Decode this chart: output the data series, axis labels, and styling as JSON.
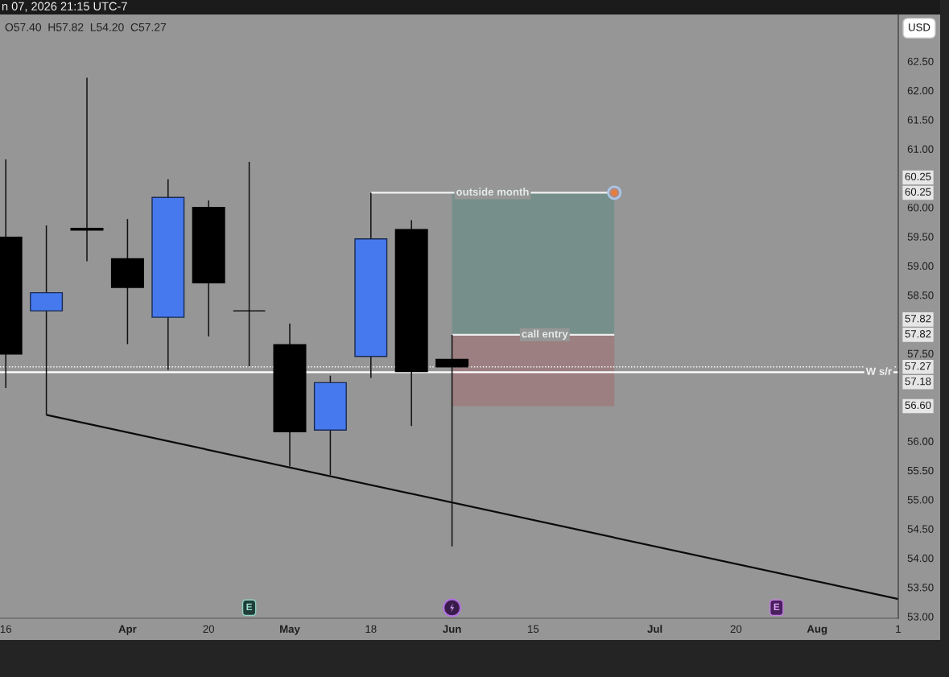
{
  "chart_data": {
    "type": "candlestick",
    "title": "n 07, 2026 21:15 UTC-7",
    "subtitle": "O57.40  H57.82  L54.20  C57.27",
    "ylabel": "USD",
    "xlim": [
      "2026-03-15",
      "2026-08-17"
    ],
    "ylim": [
      52.97,
      63.3
    ],
    "xticks": [
      {
        "value": "2026-03-16",
        "label": "16"
      },
      {
        "value": "2026-04-06",
        "label": "Apr"
      },
      {
        "value": "2026-04-20",
        "label": "20"
      },
      {
        "value": "2026-05-04",
        "label": "May"
      },
      {
        "value": "2026-05-18",
        "label": "18"
      },
      {
        "value": "2026-06-01",
        "label": "Jun"
      },
      {
        "value": "2026-06-15",
        "label": "15"
      },
      {
        "value": "2026-07-06",
        "label": "Jul"
      },
      {
        "value": "2026-07-20",
        "label": "20"
      },
      {
        "value": "2026-08-03",
        "label": "Aug"
      },
      {
        "value": "2026-08-17",
        "label": "1"
      }
    ],
    "yticks": [
      {
        "value": 53,
        "label": "53.00"
      },
      {
        "value": 53.5,
        "label": "53.50"
      },
      {
        "value": 54,
        "label": "54.00"
      },
      {
        "value": 54.5,
        "label": "54.50"
      },
      {
        "value": 55,
        "label": "55.00"
      },
      {
        "value": 55.5,
        "label": "55.50"
      },
      {
        "value": 56,
        "label": "56.00"
      },
      {
        "value": 57.5,
        "label": "57.50"
      },
      {
        "value": 58.5,
        "label": "58.50"
      },
      {
        "value": 59,
        "label": "59.00"
      },
      {
        "value": 59.5,
        "label": "59.50"
      },
      {
        "value": 60,
        "label": "60.00"
      },
      {
        "value": 61,
        "label": "61.00"
      },
      {
        "value": 61.5,
        "label": "61.50"
      },
      {
        "value": 62,
        "label": "62.00"
      },
      {
        "value": 62.5,
        "label": "62.50"
      }
    ],
    "series": [
      {
        "type": "line",
        "x": [
          "2026-06-01",
          "2026-06-29"
        ],
        "values": [
          57.82,
          57.82
        ],
        "lower": [
          57.82,
          57.82
        ],
        "upper": [
          60.25,
          60.25
        ],
        "color": "#eeeeee"
      },
      {
        "type": "line",
        "x": [
          "2026-03-23",
          "2026-08-17"
        ],
        "values": [
          56.45,
          53.3
        ],
        "color": "#0a0a0a"
      },
      {
        "type": "line",
        "x": [
          "2026-05-18",
          "2026-06-29"
        ],
        "values": [
          60.25,
          60.25
        ],
        "color": "#f2f2f2"
      },
      {
        "x": [
          "2026-03-16",
          "2026-03-23",
          "2026-03-30",
          "2026-04-06",
          "2026-04-13",
          "2026-04-20",
          "2026-04-27",
          "2026-05-04",
          "2026-05-11",
          "2026-05-18",
          "2026-05-25",
          "2026-06-01"
        ],
        "ohlc": [
          [
            59.49,
            60.82,
            56.91,
            57.49
          ],
          [
            58.23,
            59.69,
            56.45,
            58.54
          ],
          [
            59.64,
            62.22,
            59.08,
            59.61
          ],
          [
            59.12,
            59.8,
            57.66,
            58.63
          ],
          [
            58.12,
            60.48,
            57.22,
            60.17
          ],
          [
            60.0,
            60.12,
            57.79,
            58.71
          ],
          [
            58.23,
            60.78,
            57.28,
            58.23
          ],
          [
            57.65,
            58.01,
            55.57,
            56.16
          ],
          [
            56.19,
            57.12,
            55.42,
            57.0
          ],
          [
            57.45,
            60.25,
            57.08,
            59.46
          ],
          [
            59.62,
            59.78,
            56.26,
            57.19
          ],
          [
            57.4,
            57.82,
            54.2,
            57.27
          ]
        ],
        "colors": [
          "#000000",
          "#4679ee",
          "#000000",
          "#000000",
          "#4679ee",
          "#000000",
          "#000000",
          "#000000",
          "#4679ee",
          "#4679ee",
          "#000000",
          "#000000"
        ]
      }
    ],
    "bands": [
      {
        "axis": "y",
        "from": 56.6,
        "to": 57.82,
        "color": "#9c7f81"
      }
    ],
    "ref_lines": [
      {
        "axis": "y",
        "value": 57.27,
        "line_style": "dotted",
        "color": "#ffffff"
      },
      {
        "axis": "y",
        "value": 57.18,
        "label": "W s/r",
        "color": "#ffffff",
        "line_style": "solid"
      }
    ],
    "annotations": [
      {
        "text": "outside month",
        "x": "2026-06-08",
        "y": 60.25
      },
      {
        "text": "call entry",
        "x": "2026-06-17",
        "y": 57.82
      },
      {
        "text": "E",
        "x": "2026-04-27",
        "y": 53.15
      },
      {
        "text": "E",
        "x": "2026-07-27",
        "y": 53.15
      },
      "60.25",
      "60.25",
      "57.82",
      "57.82",
      "57.27",
      "57.18",
      "56.60"
    ]
  }
}
